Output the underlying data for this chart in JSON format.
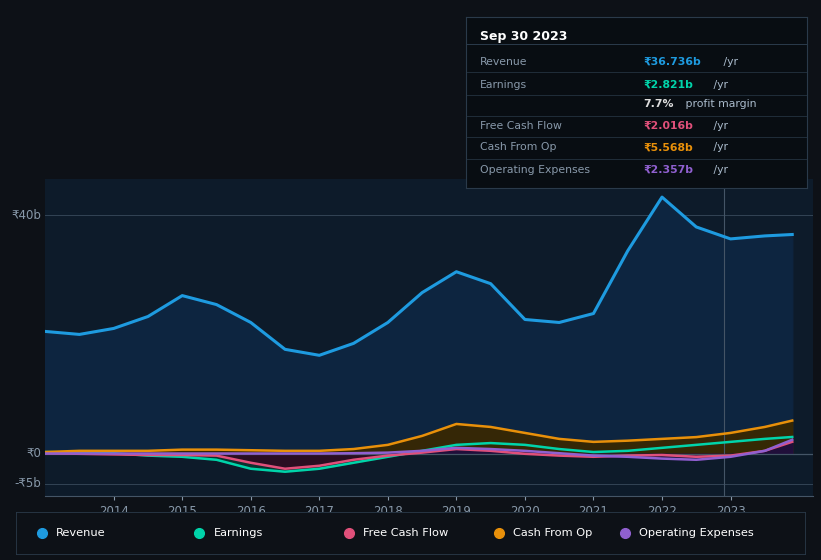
{
  "background_color": "#0d1117",
  "plot_bg_color": "#0d1b2a",
  "title_box_bg": "#090e14",
  "y_min": -7,
  "y_max": 46,
  "x_min": 2013.0,
  "x_max": 2024.2,
  "x_values": [
    2013.0,
    2013.5,
    2014.0,
    2014.5,
    2015.0,
    2015.5,
    2016.0,
    2016.5,
    2017.0,
    2017.5,
    2018.0,
    2018.5,
    2019.0,
    2019.5,
    2020.0,
    2020.5,
    2021.0,
    2021.5,
    2022.0,
    2022.5,
    2023.0,
    2023.5,
    2023.9
  ],
  "revenue": [
    20.5,
    20.0,
    21.0,
    23.0,
    26.5,
    25.0,
    22.0,
    17.5,
    16.5,
    18.5,
    22.0,
    27.0,
    30.5,
    28.5,
    22.5,
    22.0,
    23.5,
    34.0,
    43.0,
    38.0,
    36.0,
    36.5,
    36.736
  ],
  "earnings": [
    0.3,
    0.2,
    0.1,
    -0.3,
    -0.5,
    -1.0,
    -2.5,
    -3.0,
    -2.5,
    -1.5,
    -0.5,
    0.5,
    1.5,
    1.8,
    1.5,
    0.8,
    0.3,
    0.5,
    1.0,
    1.5,
    2.0,
    2.5,
    2.821
  ],
  "free_cash_flow": [
    0.1,
    0.0,
    -0.1,
    -0.2,
    -0.2,
    -0.3,
    -1.5,
    -2.5,
    -2.0,
    -1.0,
    -0.3,
    0.2,
    0.8,
    0.5,
    0.0,
    -0.3,
    -0.5,
    -0.3,
    -0.2,
    -0.5,
    -0.3,
    0.5,
    2.016
  ],
  "cash_from_op": [
    0.3,
    0.5,
    0.5,
    0.5,
    0.7,
    0.7,
    0.6,
    0.5,
    0.5,
    0.8,
    1.5,
    3.0,
    5.0,
    4.5,
    3.5,
    2.5,
    2.0,
    2.2,
    2.5,
    2.8,
    3.5,
    4.5,
    5.568
  ],
  "op_expenses": [
    0.05,
    0.05,
    0.05,
    0.05,
    0.05,
    0.05,
    0.05,
    0.05,
    0.05,
    0.1,
    0.2,
    0.5,
    1.0,
    0.8,
    0.5,
    0.1,
    -0.3,
    -0.5,
    -0.8,
    -1.0,
    -0.5,
    0.5,
    2.357
  ],
  "x_tick_positions": [
    2014,
    2015,
    2016,
    2017,
    2018,
    2019,
    2020,
    2021,
    2022,
    2023
  ],
  "x_labels": [
    "2014",
    "2015",
    "2016",
    "2017",
    "2018",
    "2019",
    "2020",
    "2021",
    "2022",
    "2023"
  ],
  "colors": {
    "revenue": "#1e9be0",
    "earnings": "#00d4aa",
    "free_cash_flow": "#e0507a",
    "cash_from_op": "#e8900a",
    "op_expenses": "#9060d0"
  },
  "legend": [
    {
      "label": "Revenue",
      "color": "#1e9be0"
    },
    {
      "label": "Earnings",
      "color": "#00d4aa"
    },
    {
      "label": "Free Cash Flow",
      "color": "#e0507a"
    },
    {
      "label": "Cash From Op",
      "color": "#e8900a"
    },
    {
      "label": "Operating Expenses",
      "color": "#9060d0"
    }
  ]
}
